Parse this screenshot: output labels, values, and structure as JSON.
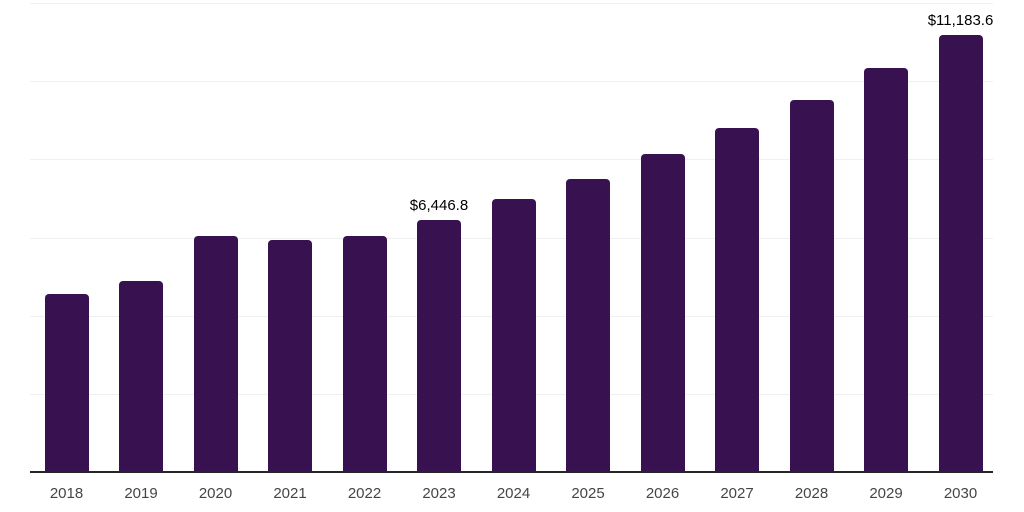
{
  "chart_data": {
    "type": "bar",
    "title": "",
    "xlabel": "",
    "ylabel": "",
    "categories": [
      "2018",
      "2019",
      "2020",
      "2021",
      "2022",
      "2023",
      "2024",
      "2025",
      "2026",
      "2027",
      "2028",
      "2029",
      "2030"
    ],
    "values": [
      4560,
      4880,
      6040,
      5940,
      6040,
      6446.8,
      6990,
      7500,
      8130,
      8800,
      9510,
      10330,
      11183.6
    ],
    "bar_labels": [
      "",
      "",
      "",
      "",
      "",
      "$6,446.8",
      "",
      "",
      "",
      "",
      "",
      "",
      "$11,183.6"
    ],
    "ylim": [
      0,
      12000
    ],
    "gridline_step": 2000,
    "grid": true,
    "legend": false,
    "y_axis_labels_visible": false,
    "colors": {
      "bar": "#371150",
      "gridline": "#f0f0f0",
      "axis_line": "#262626",
      "tick_label": "#454545",
      "data_label": "#000000",
      "background": "#ffffff"
    }
  }
}
